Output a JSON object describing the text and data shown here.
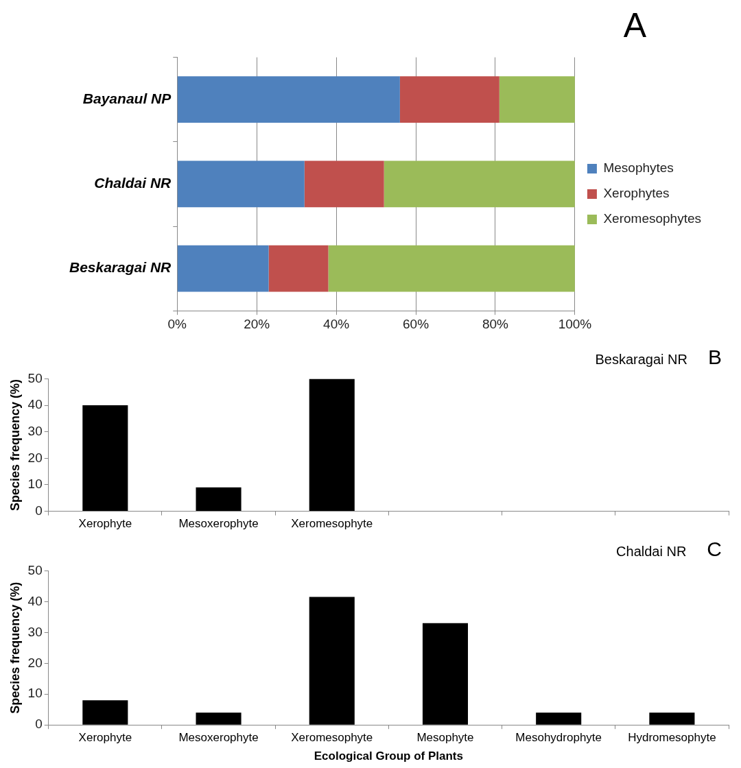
{
  "chart_data": [
    {
      "type": "bar",
      "orientation": "horizontal",
      "stacked": true,
      "annotations": [
        "A"
      ],
      "categories": [
        "Bayanaul NP",
        "Chaldai NR",
        "Beskaragai NR"
      ],
      "series": [
        {
          "name": "Mesophytes",
          "color": "#4f81bd",
          "values": [
            56,
            32,
            23
          ]
        },
        {
          "name": "Xerophytes",
          "color": "#c0504d",
          "values": [
            25,
            20,
            15
          ]
        },
        {
          "name": "Xeromesophytes",
          "color": "#9bbb59",
          "values": [
            19,
            48,
            62
          ]
        }
      ],
      "xlim": [
        0,
        100
      ],
      "xticks": [
        {
          "value": 0,
          "label": "0%"
        },
        {
          "value": 20,
          "label": "20%"
        },
        {
          "value": 40,
          "label": "40%"
        },
        {
          "value": 60,
          "label": "60%"
        },
        {
          "value": 80,
          "label": "80%"
        },
        {
          "value": 100,
          "label": "100%"
        }
      ],
      "grid": "x",
      "legend": "right"
    },
    {
      "type": "bar",
      "title": "Beskaragai NR",
      "annotations": [
        "B"
      ],
      "ylabel": "Species frequency (%)",
      "categories": [
        "Xerophyte",
        "Mesoxerophyte",
        "Xeromesophyte",
        null,
        null,
        null
      ],
      "values": [
        40,
        9,
        50,
        null,
        null,
        null
      ],
      "color": "#000000",
      "ylim": [
        0,
        50
      ],
      "yticks": [
        0,
        10,
        20,
        30,
        40,
        50
      ],
      "grid": false,
      "legend": false
    },
    {
      "type": "bar",
      "title": "Chaldai NR",
      "annotations": [
        "C"
      ],
      "ylabel": "Species frequency (%)",
      "xlabel": "Ecological Group of Plants",
      "categories": [
        "Xerophyte",
        "Mesoxerophyte",
        "Xeromesophyte",
        "Mesophyte",
        "Mesohydrophyte",
        "Hydromesophyte"
      ],
      "values": [
        8,
        4,
        41.5,
        33,
        4,
        4
      ],
      "color": "#000000",
      "ylim": [
        0,
        50
      ],
      "yticks": [
        0,
        10,
        20,
        30,
        40,
        50
      ],
      "grid": false,
      "legend": false
    }
  ]
}
